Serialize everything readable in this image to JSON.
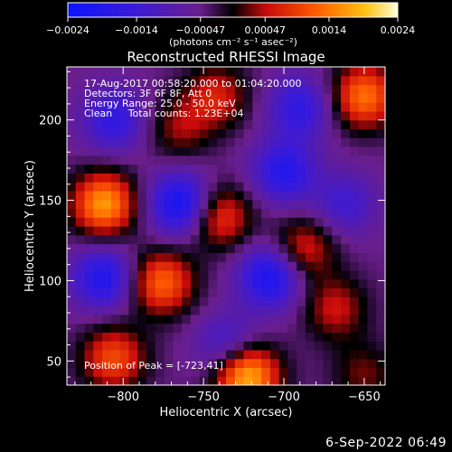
{
  "chart_data": {
    "type": "heatmap",
    "title": "Reconstructed RHESSI Image",
    "xlabel": "Heliocentric X (arcsec)",
    "ylabel": "Heliocentric Y (arcsec)",
    "xlim": [
      -835,
      -637
    ],
    "ylim": [
      35,
      233
    ],
    "x_ticks": [
      -800,
      -750,
      -700,
      -650
    ],
    "x_tick_labels": [
      "−800",
      "−750",
      "−700",
      "−650"
    ],
    "y_ticks": [
      50,
      100,
      150,
      200
    ],
    "y_tick_labels": [
      "50",
      "100",
      "150",
      "200"
    ],
    "colorbar": {
      "min": -0.0024,
      "max": 0.0024,
      "ticks": [
        -0.0024,
        -0.0014,
        -0.00047,
        0.00047,
        0.0014,
        0.0024
      ],
      "tick_labels": [
        "−0.0024",
        "−0.0014",
        "−0.00047",
        "0.00047",
        "0.0014",
        "0.0024"
      ],
      "units_label": "(photons cm⁻² s⁻¹ asec⁻²)"
    },
    "annotations": [
      "17-Aug-2017 00:58:20.000 to 01:04:20.000",
      "Detectors: 3F 6F 8F, Att 0",
      "Energy Range: 25.0 - 50.0 keV",
      "Clean     Total counts: 1.23E+04"
    ],
    "peak_label": "Position of Peak = [-723,41]",
    "peak_position": [
      -723,
      41
    ],
    "blobs": [
      {
        "x": -723,
        "y": 41,
        "value": 0.0024
      },
      {
        "x": -812,
        "y": 148,
        "value": 0.0021
      },
      {
        "x": -776,
        "y": 99,
        "value": 0.0017
      },
      {
        "x": -806,
        "y": 52,
        "value": 0.0015
      },
      {
        "x": -650,
        "y": 215,
        "value": 0.0018
      },
      {
        "x": -740,
        "y": 140,
        "value": 0.0014
      },
      {
        "x": -688,
        "y": 120,
        "value": 0.0012
      },
      {
        "x": -742,
        "y": 215,
        "value": 0.0011
      },
      {
        "x": -668,
        "y": 83,
        "value": 0.001
      },
      {
        "x": -765,
        "y": 195,
        "value": 0.0008
      },
      {
        "x": -650,
        "y": 42,
        "value": 0.0007
      },
      {
        "x": -764,
        "y": 148,
        "value": -0.0018
      },
      {
        "x": -708,
        "y": 103,
        "value": -0.0017
      },
      {
        "x": -812,
        "y": 102,
        "value": -0.0015
      },
      {
        "x": -700,
        "y": 168,
        "value": -0.0014
      },
      {
        "x": -690,
        "y": 208,
        "value": -0.0012
      },
      {
        "x": -806,
        "y": 200,
        "value": -0.0012
      },
      {
        "x": -735,
        "y": 60,
        "value": -0.001
      },
      {
        "x": -662,
        "y": 148,
        "value": -0.0009
      }
    ]
  },
  "timestamp": "6-Sep-2022 06:49"
}
